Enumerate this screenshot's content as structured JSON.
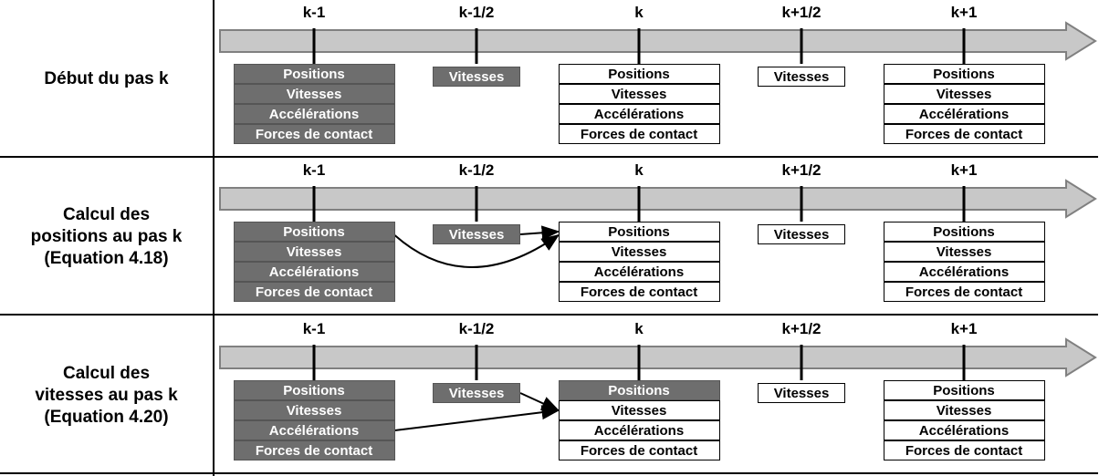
{
  "colors": {
    "timeline_fill": "#c8c8c8",
    "timeline_stroke": "#808080",
    "filled_box": "#6e6e6e",
    "empty_box": "#ffffff"
  },
  "ticks": [
    "k-1",
    "k-1/2",
    "k",
    "k+1/2",
    "k+1"
  ],
  "rows": [
    {
      "label": "Début du pas k",
      "groups": [
        {
          "tick": 0,
          "items": [
            {
              "text": "Positions",
              "filled": true
            },
            {
              "text": "Vitesses",
              "filled": true
            },
            {
              "text": "Accélérations",
              "filled": true
            },
            {
              "text": "Forces de contact",
              "filled": true
            }
          ]
        },
        {
          "tick": 1,
          "items": [
            {
              "text": "Vitesses",
              "filled": true
            }
          ]
        },
        {
          "tick": 2,
          "items": [
            {
              "text": "Positions",
              "filled": false
            },
            {
              "text": "Vitesses",
              "filled": false
            },
            {
              "text": "Accélérations",
              "filled": false
            },
            {
              "text": "Forces de contact",
              "filled": false
            }
          ]
        },
        {
          "tick": 3,
          "items": [
            {
              "text": "Vitesses",
              "filled": false
            }
          ]
        },
        {
          "tick": 4,
          "items": [
            {
              "text": "Positions",
              "filled": false
            },
            {
              "text": "Vitesses",
              "filled": false
            },
            {
              "text": "Accélérations",
              "filled": false
            },
            {
              "text": "Forces de contact",
              "filled": false
            }
          ]
        }
      ],
      "arrows": []
    },
    {
      "label": "Calcul des\npositions au pas k\n(Equation 4.18)",
      "groups": [
        {
          "tick": 0,
          "items": [
            {
              "text": "Positions",
              "filled": true
            },
            {
              "text": "Vitesses",
              "filled": true
            },
            {
              "text": "Accélérations",
              "filled": true
            },
            {
              "text": "Forces de contact",
              "filled": true
            }
          ]
        },
        {
          "tick": 1,
          "items": [
            {
              "text": "Vitesses",
              "filled": true
            }
          ]
        },
        {
          "tick": 2,
          "items": [
            {
              "text": "Positions",
              "filled": false
            },
            {
              "text": "Vitesses",
              "filled": false
            },
            {
              "text": "Accélérations",
              "filled": false
            },
            {
              "text": "Forces de contact",
              "filled": false
            }
          ]
        },
        {
          "tick": 3,
          "items": [
            {
              "text": "Vitesses",
              "filled": false
            }
          ]
        },
        {
          "tick": 4,
          "items": [
            {
              "text": "Positions",
              "filled": false
            },
            {
              "text": "Vitesses",
              "filled": false
            },
            {
              "text": "Accélérations",
              "filled": false
            },
            {
              "text": "Forces de contact",
              "filled": false
            }
          ]
        }
      ],
      "arrows": [
        {
          "from": [
            1,
            0
          ],
          "to": [
            2,
            0
          ],
          "curve": false
        },
        {
          "from": [
            0,
            0
          ],
          "to": [
            2,
            0
          ],
          "curve": true
        }
      ]
    },
    {
      "label": "Calcul des\nvitesses au pas k\n(Equation 4.20)",
      "groups": [
        {
          "tick": 0,
          "items": [
            {
              "text": "Positions",
              "filled": true
            },
            {
              "text": "Vitesses",
              "filled": true
            },
            {
              "text": "Accélérations",
              "filled": true
            },
            {
              "text": "Forces de contact",
              "filled": true
            }
          ]
        },
        {
          "tick": 1,
          "items": [
            {
              "text": "Vitesses",
              "filled": true
            }
          ]
        },
        {
          "tick": 2,
          "items": [
            {
              "text": "Positions",
              "filled": true
            },
            {
              "text": "Vitesses",
              "filled": false
            },
            {
              "text": "Accélérations",
              "filled": false
            },
            {
              "text": "Forces de contact",
              "filled": false
            }
          ]
        },
        {
          "tick": 3,
          "items": [
            {
              "text": "Vitesses",
              "filled": false
            }
          ]
        },
        {
          "tick": 4,
          "items": [
            {
              "text": "Positions",
              "filled": false
            },
            {
              "text": "Vitesses",
              "filled": false
            },
            {
              "text": "Accélérations",
              "filled": false
            },
            {
              "text": "Forces de contact",
              "filled": false
            }
          ]
        }
      ],
      "arrows": [
        {
          "from": [
            1,
            0
          ],
          "to": [
            2,
            1
          ],
          "curve": false
        },
        {
          "from": [
            0,
            2
          ],
          "to": [
            2,
            1
          ],
          "curve": false
        }
      ]
    }
  ]
}
